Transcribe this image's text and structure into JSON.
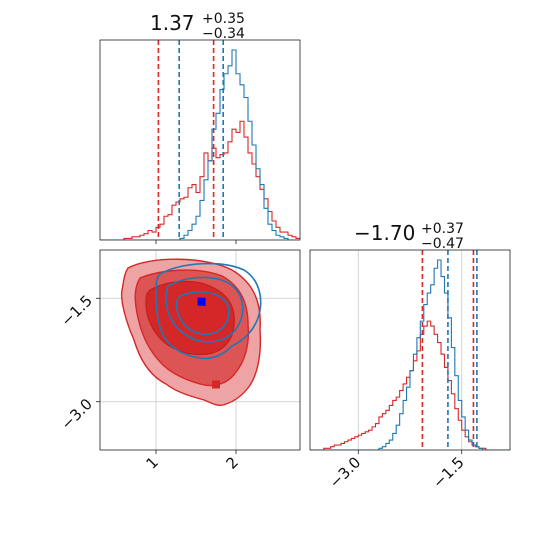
{
  "chart_data": {
    "type": "corner",
    "colors": {
      "series_a": "#d62728",
      "series_b": "#1f77b4",
      "marker_b": "#0000ff",
      "grid": "#c8c8c8"
    },
    "series": [
      {
        "name": "",
        "color": "#d62728"
      },
      {
        "name": "",
        "color": "#1f77b4"
      }
    ],
    "params": [
      {
        "title_value": "1.37",
        "title_plus": "+0.35",
        "title_minus": "−0.34",
        "xlim": [
          0.3,
          2.8
        ]
      },
      {
        "title_value": "−1.70",
        "title_plus": "+0.37",
        "title_minus": "−0.47",
        "xlim": [
          -3.7,
          -0.8
        ]
      }
    ],
    "panels": {
      "hist_x": {
        "xlim": [
          0.3,
          2.8
        ],
        "bin_width": 0.05,
        "x_start": 0.3,
        "red_counts": [
          0,
          0,
          0,
          0,
          0,
          0,
          1,
          1,
          2,
          2,
          3,
          4,
          6,
          5,
          8,
          10,
          15,
          16,
          22,
          24,
          26,
          27,
          33,
          35,
          30,
          40,
          55,
          50,
          58,
          52,
          54,
          55,
          62,
          70,
          68,
          75,
          65,
          55,
          48,
          40,
          32,
          26,
          18,
          12,
          8,
          5,
          5,
          3,
          2,
          1
        ],
        "blue_counts": [
          0,
          0,
          0,
          0,
          0,
          0,
          0,
          0,
          0,
          0,
          0,
          0,
          0,
          0,
          0,
          0,
          0,
          0,
          0,
          0,
          1,
          3,
          6,
          10,
          15,
          25,
          38,
          50,
          70,
          80,
          95,
          105,
          110,
          120,
          105,
          98,
          90,
          75,
          60,
          45,
          35,
          20,
          10,
          6,
          3,
          2,
          1,
          0,
          0,
          0
        ],
        "red_quantiles": [
          1.03,
          1.72
        ],
        "blue_quantiles": [
          1.29,
          1.84
        ],
        "tick_values": [
          1,
          2
        ],
        "tick_labels": [
          "1",
          "2"
        ]
      },
      "scatter_2d": {
        "xlim": [
          0.3,
          2.8
        ],
        "ylim": [
          -3.7,
          -0.8
        ],
        "x_tick_values": [
          1,
          2
        ],
        "x_tick_labels": [
          "1",
          "2"
        ],
        "y_tick_values": [
          -1.5,
          -3.0
        ],
        "y_tick_labels": [
          "−1.5",
          "−3.0"
        ],
        "red_markers": [
          [
            1.22,
            -1.45
          ],
          [
            1.48,
            -1.85
          ],
          [
            1.75,
            -2.75
          ]
        ],
        "blue_marker": [
          1.57,
          -1.55
        ]
      },
      "hist_y": {
        "xlim": [
          -3.7,
          -0.8
        ],
        "bin_width": 0.05,
        "x_start": -3.7,
        "red_counts": [
          0,
          0,
          0,
          0,
          1,
          1,
          2,
          3,
          3,
          4,
          5,
          6,
          7,
          8,
          9,
          10,
          11,
          12,
          14,
          16,
          20,
          22,
          24,
          27,
          30,
          32,
          36,
          40,
          44,
          48,
          54,
          60,
          70,
          75,
          78,
          75,
          70,
          65,
          58,
          50,
          42,
          34,
          25,
          18,
          12,
          8,
          5,
          3,
          2,
          1,
          1,
          0,
          0,
          0,
          0,
          0,
          0,
          0
        ],
        "blue_counts": [
          0,
          0,
          0,
          0,
          0,
          0,
          0,
          0,
          0,
          0,
          0,
          0,
          0,
          0,
          0,
          0,
          0,
          0,
          0,
          0,
          1,
          2,
          4,
          6,
          10,
          15,
          22,
          30,
          38,
          48,
          58,
          68,
          78,
          88,
          95,
          100,
          110,
          115,
          105,
          95,
          80,
          62,
          45,
          30,
          20,
          12,
          6,
          3,
          2,
          1,
          0,
          0,
          0,
          0,
          0,
          0,
          0,
          0
        ],
        "red_quantiles": [
          -2.07,
          -1.33
        ],
        "blue_quantiles": [
          -1.7,
          -1.28
        ],
        "tick_values": [
          -3.0,
          -1.5
        ],
        "tick_labels": [
          "−3.0",
          "−1.5"
        ]
      }
    }
  }
}
